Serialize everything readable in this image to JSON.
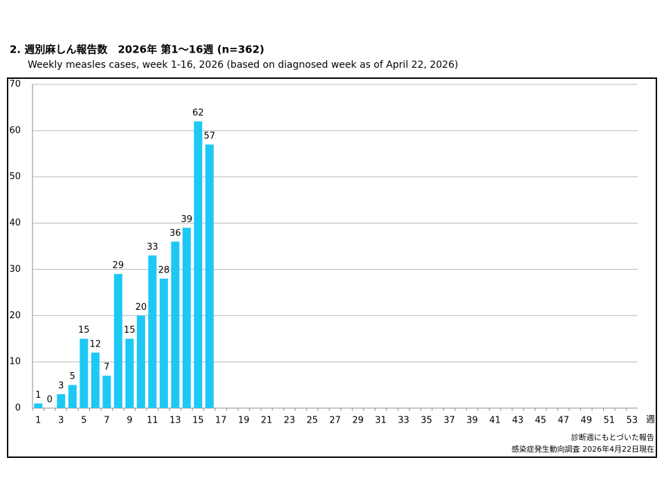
{
  "chart_data": {
    "type": "bar",
    "title": "2. 週別麻しん報告数　2026年 第1～16週 (n=362)",
    "subtitle": "Weekly measles cases, week 1-16, 2026 (based on diagnosed week as of April 22, 2026)",
    "x_label": "週",
    "notes": [
      "診断週にもとづいた報告",
      "感染症発生動向調査 2026年4月22日現在"
    ],
    "categories": [
      "1",
      null,
      "3",
      null,
      "5",
      null,
      "7",
      null,
      "9",
      null,
      "11",
      null,
      "13",
      null,
      "15",
      null,
      "17",
      null,
      "19",
      null,
      "21",
      null,
      "23",
      null,
      "25",
      null,
      "27",
      null,
      "29",
      null,
      "31",
      null,
      "33",
      null,
      "35",
      null,
      "37",
      null,
      "39",
      null,
      "41",
      null,
      "43",
      null,
      "45",
      null,
      "47",
      null,
      "49",
      null,
      "51",
      null,
      "53"
    ],
    "values": [
      1,
      0,
      3,
      5,
      15,
      12,
      7,
      29,
      15,
      20,
      33,
      28,
      36,
      39,
      62,
      57,
      null,
      null,
      null,
      null,
      null,
      null,
      null,
      null,
      null,
      null,
      null,
      null,
      null,
      null,
      null,
      null,
      null,
      null,
      null,
      null,
      null,
      null,
      null,
      null,
      null,
      null,
      null,
      null,
      null,
      null,
      null,
      null,
      null,
      null,
      null,
      null,
      null
    ],
    "color": "#1ec8f5",
    "ylim": [
      0,
      70
    ],
    "yticks": [
      0,
      10,
      20,
      30,
      40,
      50,
      60,
      70
    ],
    "grid": true
  }
}
